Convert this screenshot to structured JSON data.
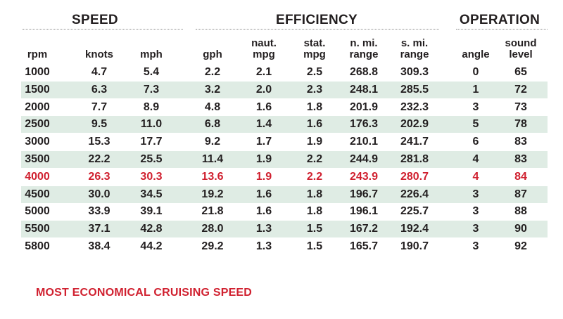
{
  "groups": {
    "speed": "SPEED",
    "efficiency": "EFFICIENCY",
    "operation": "OPERATION"
  },
  "columns": {
    "rpm": [
      "rpm"
    ],
    "knots": [
      "knots"
    ],
    "mph": [
      "mph"
    ],
    "gph": [
      "gph"
    ],
    "naut_mpg": [
      "naut.",
      "mpg"
    ],
    "stat_mpg": [
      "stat.",
      "mpg"
    ],
    "n_range": [
      "n. mi.",
      "range"
    ],
    "s_range": [
      "s. mi.",
      "range"
    ],
    "angle": [
      "angle"
    ],
    "sound": [
      "sound",
      "level"
    ]
  },
  "rows": [
    [
      "1000",
      "4.7",
      "5.4",
      "2.2",
      "2.1",
      "2.5",
      "268.8",
      "309.3",
      "0",
      "65"
    ],
    [
      "1500",
      "6.3",
      "7.3",
      "3.2",
      "2.0",
      "2.3",
      "248.1",
      "285.5",
      "1",
      "72"
    ],
    [
      "2000",
      "7.7",
      "8.9",
      "4.8",
      "1.6",
      "1.8",
      "201.9",
      "232.3",
      "3",
      "73"
    ],
    [
      "2500",
      "9.5",
      "11.0",
      "6.8",
      "1.4",
      "1.6",
      "176.3",
      "202.9",
      "5",
      "78"
    ],
    [
      "3000",
      "15.3",
      "17.7",
      "9.2",
      "1.7",
      "1.9",
      "210.1",
      "241.7",
      "6",
      "83"
    ],
    [
      "3500",
      "22.2",
      "25.5",
      "11.4",
      "1.9",
      "2.2",
      "244.9",
      "281.8",
      "4",
      "83"
    ],
    [
      "4000",
      "26.3",
      "30.3",
      "13.6",
      "1.9",
      "2.2",
      "243.9",
      "280.7",
      "4",
      "84"
    ],
    [
      "4500",
      "30.0",
      "34.5",
      "19.2",
      "1.6",
      "1.8",
      "196.7",
      "226.4",
      "3",
      "87"
    ],
    [
      "5000",
      "33.9",
      "39.1",
      "21.8",
      "1.6",
      "1.8",
      "196.1",
      "225.7",
      "3",
      "88"
    ],
    [
      "5500",
      "37.1",
      "42.8",
      "28.0",
      "1.3",
      "1.5",
      "167.2",
      "192.4",
      "3",
      "90"
    ],
    [
      "5800",
      "38.4",
      "44.2",
      "29.2",
      "1.3",
      "1.5",
      "165.7",
      "190.7",
      "3",
      "92"
    ]
  ],
  "highlight_row": 6,
  "footnote": "MOST ECONOMICAL CRUISING SPEED",
  "colors": {
    "highlight": "#d0202f",
    "shade": "#dfece4",
    "text": "#231f20"
  }
}
